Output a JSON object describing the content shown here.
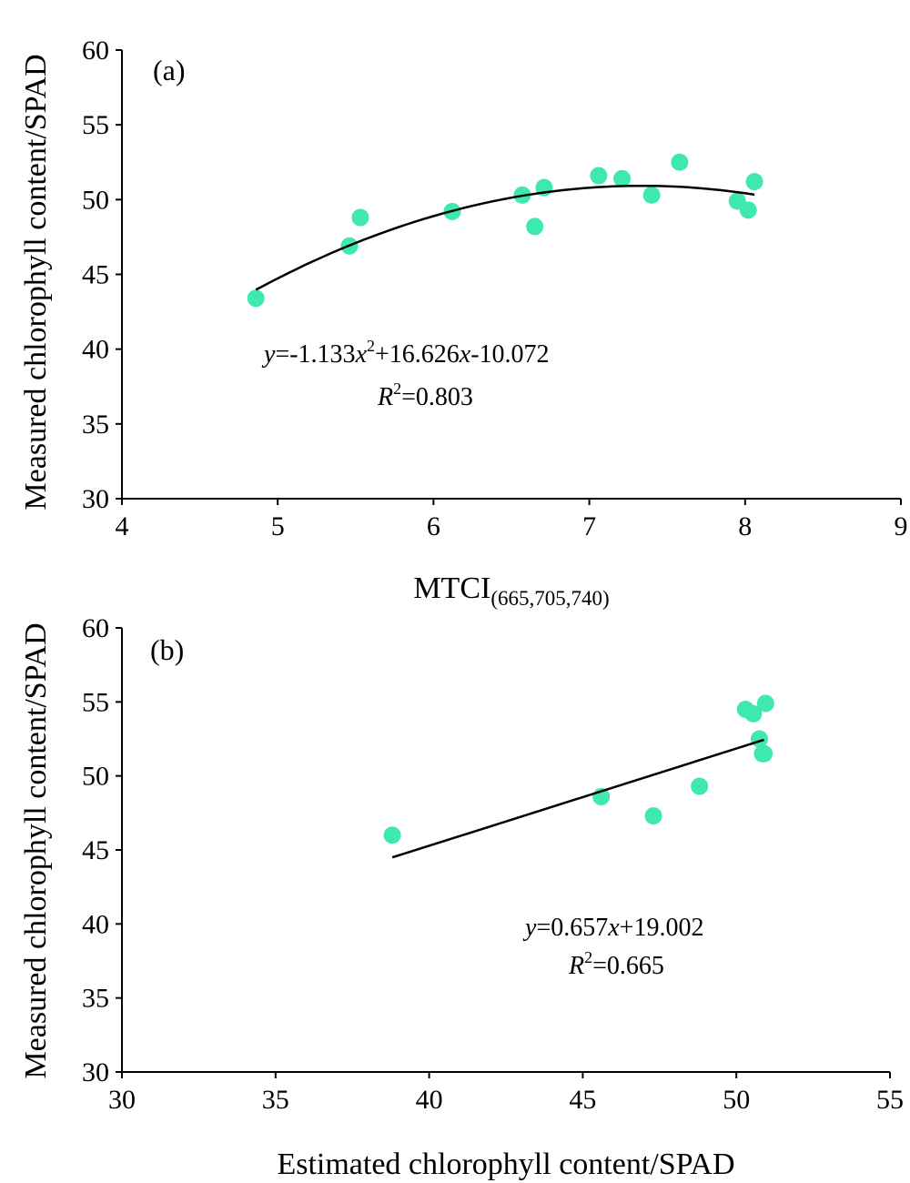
{
  "colors": {
    "point": "#3ee8b0",
    "line": "#000000"
  },
  "chart_data": [
    {
      "type": "scatter",
      "panel_label": "(a)",
      "xlabel": "MTCI",
      "xlabel_subscript": "(665,705,740)",
      "ylabel": "Measured chlorophyll content/SPAD",
      "xlim": [
        4,
        9
      ],
      "ylim": [
        30,
        60
      ],
      "xticks": [
        4,
        5,
        6,
        7,
        8,
        9
      ],
      "yticks": [
        30,
        35,
        40,
        45,
        50,
        55,
        60
      ],
      "points": {
        "x": [
          4.86,
          5.46,
          5.53,
          6.12,
          6.57,
          6.65,
          6.71,
          7.06,
          7.21,
          7.4,
          7.58,
          7.95,
          8.02,
          8.06
        ],
        "y": [
          43.4,
          46.9,
          48.8,
          49.2,
          50.3,
          48.2,
          50.8,
          51.6,
          51.4,
          50.3,
          52.5,
          49.9,
          49.3,
          51.2
        ]
      },
      "fit": {
        "kind": "quadratic",
        "coefficients": [
          -1.133,
          16.626,
          -10.072
        ],
        "x_range": [
          4.86,
          8.06
        ]
      },
      "equation": {
        "y": "y",
        "eq1": "=-1.133",
        "x1": "x",
        "exp": "2",
        "eq2": "+16.626",
        "x2": "x",
        "eq3": "-10.072"
      },
      "r2": {
        "r": "R",
        "exp": "2",
        "value": "=0.803"
      }
    },
    {
      "type": "scatter",
      "panel_label": "(b)",
      "xlabel": "Estimated chlorophyll content/SPAD",
      "ylabel": "Measured chlorophyll content/SPAD",
      "xlim": [
        30,
        55
      ],
      "ylim": [
        30,
        60
      ],
      "xticks": [
        30,
        35,
        40,
        45,
        50,
        55
      ],
      "yticks": [
        30,
        35,
        40,
        45,
        50,
        55,
        60
      ],
      "points": {
        "x": [
          38.8,
          45.6,
          47.3,
          48.8,
          50.3,
          50.55,
          50.75,
          50.85,
          50.9,
          50.95
        ],
        "y": [
          46.0,
          48.6,
          47.3,
          49.3,
          54.5,
          54.2,
          52.5,
          51.5,
          51.5,
          54.9
        ]
      },
      "fit": {
        "kind": "linear",
        "coefficients": [
          0.657,
          19.002
        ],
        "x_range": [
          38.8,
          50.9
        ]
      },
      "equation": {
        "y": "y",
        "eq1": "=0.657",
        "x1": "x",
        "eq2": "+19.002"
      },
      "r2": {
        "r": "R",
        "exp": "2",
        "value": "=0.665"
      }
    }
  ]
}
